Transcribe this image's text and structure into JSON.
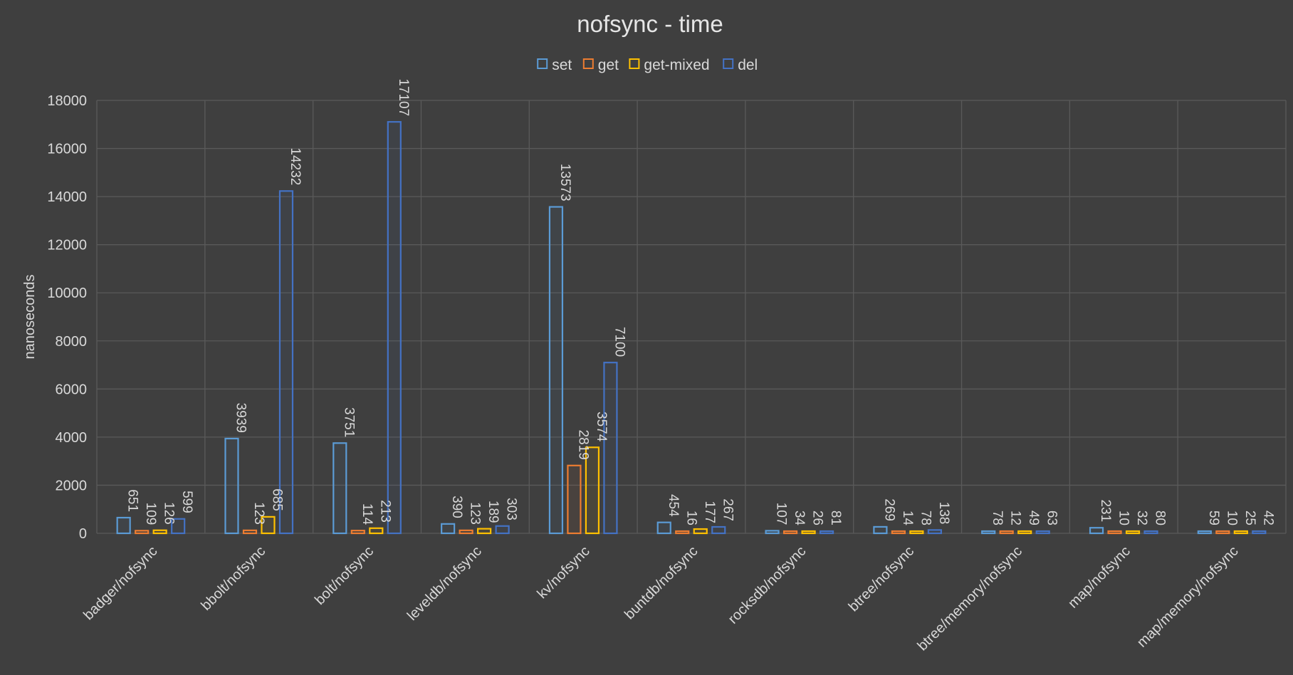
{
  "chart_data": {
    "type": "bar",
    "title": "nofsync - time",
    "ylabel": "nanoseconds",
    "ylim": [
      0,
      18000
    ],
    "yticks": [
      0,
      2000,
      4000,
      6000,
      8000,
      10000,
      12000,
      14000,
      16000,
      18000
    ],
    "legend_position": "top-center",
    "grid": true,
    "categories": [
      "badger/nofsync",
      "bbolt/nofsync",
      "bolt/nofsync",
      "leveldb/nofsync",
      "kv/nofsync",
      "buntdb/nofsync",
      "rocksdb/nofsync",
      "btree/nofsync",
      "btree/memory/nofsync",
      "map/nofsync",
      "map/memory/nofsync"
    ],
    "series": [
      {
        "name": "set",
        "color": "#5b9bd5",
        "values": [
          651,
          3939,
          3751,
          390,
          13573,
          454,
          107,
          269,
          78,
          231,
          59
        ]
      },
      {
        "name": "get",
        "color": "#ed7d31",
        "values": [
          109,
          123,
          114,
          123,
          2819,
          16,
          34,
          14,
          12,
          10,
          10
        ]
      },
      {
        "name": "get-mixed",
        "color": "#ffc000",
        "values": [
          126,
          685,
          213,
          189,
          3574,
          177,
          26,
          78,
          49,
          32,
          25
        ]
      },
      {
        "name": "del",
        "color": "#4472c4",
        "values": [
          599,
          14232,
          17107,
          303,
          7100,
          267,
          81,
          138,
          63,
          80,
          42
        ]
      }
    ]
  }
}
